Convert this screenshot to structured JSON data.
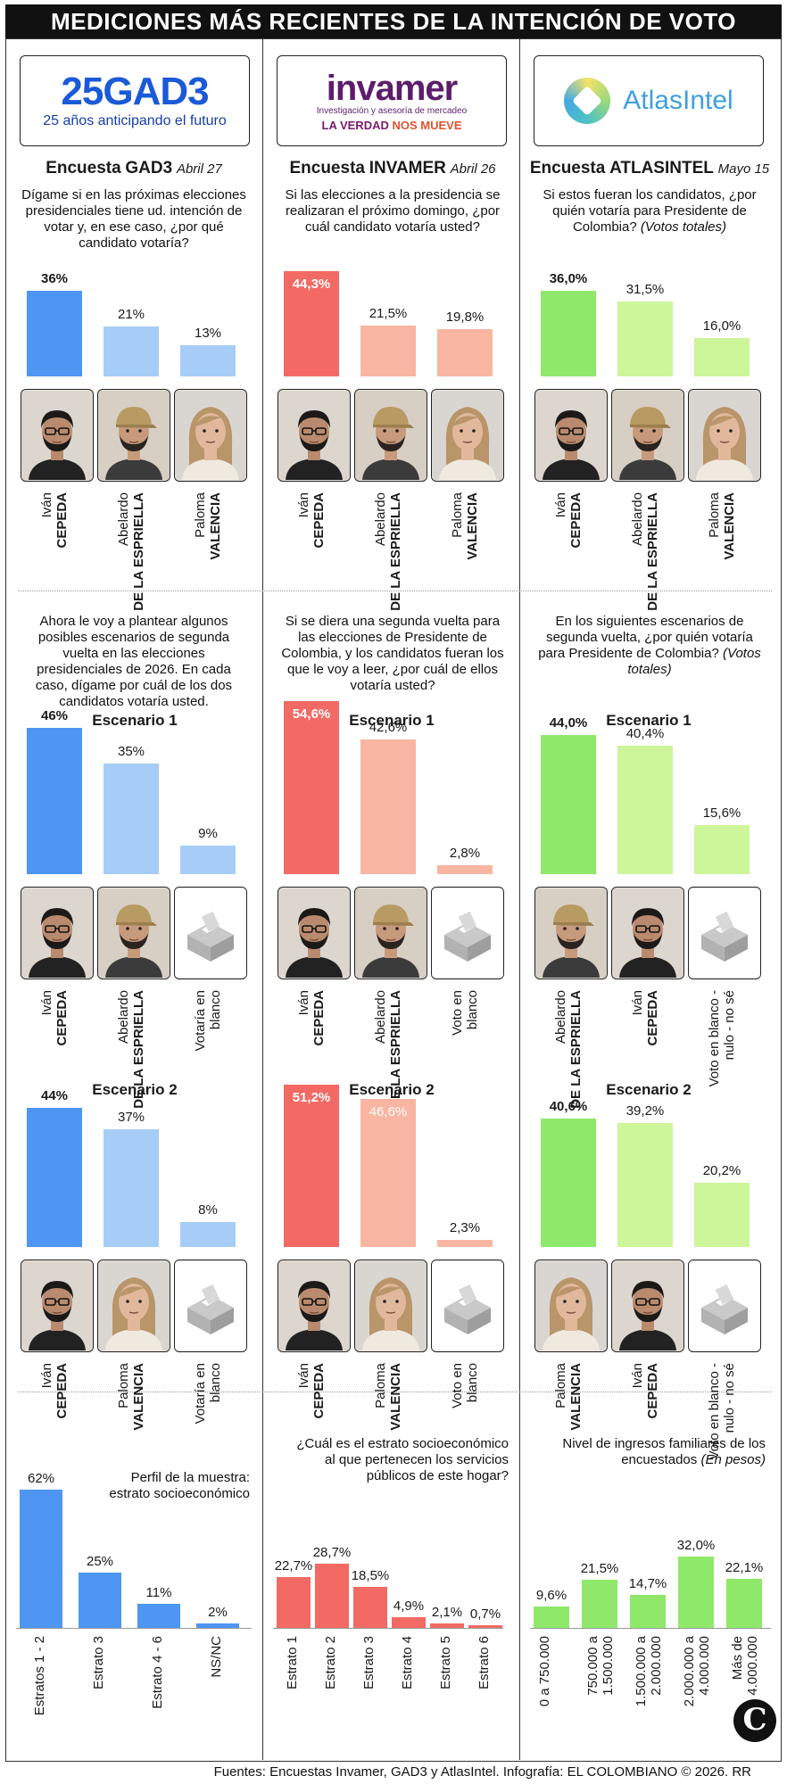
{
  "title": "MEDICIONES MÁS RECIENTES DE LA INTENCIÓN DE VOTO",
  "footer": "Fuentes: Encuestas Invamer, GAD3 y AtlasIntel. Infografía: EL COLOMBIANO © 2026. RR",
  "credit_logo": "C",
  "colors": {
    "gad3": "#4d96f2",
    "gad3_light": "#a6cdf7",
    "invamer": "#f26a63",
    "invamer_light": "#f8b6a2",
    "atlas": "#8fe86a",
    "atlas_light": "#cdf59a"
  },
  "pollsters": {
    "gad3": {
      "logo_mark": "25GAD3",
      "logo_tagline": "25 años anticipando el futuro",
      "survey_prefix": "Encuesta",
      "survey_name": "GAD3",
      "date": "Abril 27"
    },
    "invamer": {
      "logo_mark": "invamer",
      "logo_sub": "Investigación y asesoría de mercadeo",
      "logo_tagline_a": "LA VERDAD",
      "logo_tagline_b": "NOS MUEVE",
      "survey_prefix": "Encuesta",
      "survey_name": "INVAMER",
      "date": "Abril 26"
    },
    "atlas": {
      "logo_mark_a": "Atlas",
      "logo_mark_b": "Intel",
      "survey_prefix": "Encuesta",
      "survey_name": "ATLASINTEL",
      "date": "Mayo 15"
    }
  },
  "first_round": {
    "gad3_question": "Dígame si en las próximas elecciones presidenciales tiene ud. intención de votar y, en ese caso, ¿por qué candidato votaría?",
    "invamer_question": "Si las elecciones a la presidencia se realizaran el próximo domingo, ¿por cuál candidato votaría usted?",
    "atlas_question": "Si estos fueran los candidatos, ¿por quién votaría para Presidente de Colombia?",
    "atlas_question_note": "(Votos totales)"
  },
  "second_round": {
    "gad3_question": "Ahora le voy a plantear algunos posibles escenarios de segunda vuelta en las elecciones presidenciales de 2026. En cada caso, dígame por cuál de los dos candidatos votaría usted.",
    "invamer_question": "Si se diera una segunda vuelta para las elecciones de Presidente de Colombia, y los candidatos fueran los que le voy a leer, ¿por cuál de ellos votaría usted?",
    "atlas_question": "En los siguientes escenarios de segunda vuelta, ¿por quién votaría para Presidente de Colombia?",
    "atlas_question_note": "(Votos totales)",
    "scenario1": "Escenario 1",
    "scenario2": "Escenario 2"
  },
  "profiles": {
    "gad3_title": "Perfil de la muestra: estrato socioeconómico",
    "invamer_title": "¿Cuál es el estrato socioeconómico al que pertenecen los servicios públicos de este hogar?",
    "atlas_title": "Nivel de ingresos familiares de los encuestados",
    "atlas_title_note": "(En pesos)"
  },
  "chart_data": [
    {
      "type": "bar",
      "id": "gad3-r1",
      "categories": [
        [
          "Iván",
          "CEPEDA"
        ],
        [
          "Abelardo",
          "DE LA ESPRIELLA"
        ],
        [
          "Paloma",
          "VALENCIA"
        ]
      ],
      "values": [
        36,
        21,
        13
      ],
      "labels": [
        "36%",
        "21%",
        "13%"
      ],
      "ylim": [
        0,
        48
      ]
    },
    {
      "type": "bar",
      "id": "invamer-r1",
      "categories": [
        [
          "Iván",
          "CEPEDA"
        ],
        [
          "Abelardo",
          "DE LA ESPRIELLA"
        ],
        [
          "Paloma",
          "VALENCIA"
        ]
      ],
      "values": [
        44.3,
        21.5,
        19.8
      ],
      "labels": [
        "44,3%",
        "21,5%",
        "19,8%"
      ],
      "ylim": [
        0,
        48
      ]
    },
    {
      "type": "bar",
      "id": "atlas-r1",
      "categories": [
        [
          "Iván",
          "CEPEDA"
        ],
        [
          "Abelardo",
          "DE LA ESPRIELLA"
        ],
        [
          "Paloma",
          "VALENCIA"
        ]
      ],
      "values": [
        36.0,
        31.5,
        16.0
      ],
      "labels": [
        "36,0%",
        "31,5%",
        "16,0%"
      ],
      "ylim": [
        0,
        48
      ]
    },
    {
      "type": "bar",
      "id": "gad3-s1",
      "categories": [
        [
          "Iván",
          "CEPEDA"
        ],
        [
          "Abelardo",
          "DE LA ESPRIELLA"
        ],
        [
          "Votaría en",
          "blanco"
        ]
      ],
      "values": [
        46,
        35,
        9
      ],
      "labels": [
        "46%",
        "35%",
        "9%"
      ],
      "ylim": [
        0,
        60
      ]
    },
    {
      "type": "bar",
      "id": "invamer-s1",
      "categories": [
        [
          "Iván",
          "CEPEDA"
        ],
        [
          "Abelardo",
          "DE LA ESPRIELLA"
        ],
        [
          "Voto en",
          "blanco"
        ]
      ],
      "values": [
        54.6,
        42.6,
        2.8
      ],
      "labels": [
        "54,6%",
        "42,6%",
        "2,8%"
      ],
      "ylim": [
        0,
        60
      ]
    },
    {
      "type": "bar",
      "id": "atlas-s1",
      "categories": [
        [
          "Abelardo",
          "DE LA ESPRIELLA"
        ],
        [
          "Iván",
          "CEPEDA"
        ],
        [
          "Voto en blanco -",
          "nulo - no sé"
        ]
      ],
      "values": [
        44.0,
        40.4,
        15.6
      ],
      "labels": [
        "44,0%",
        "40,4%",
        "15,6%"
      ],
      "ylim": [
        0,
        60
      ]
    },
    {
      "type": "bar",
      "id": "gad3-s2",
      "categories": [
        [
          "Iván",
          "CEPEDA"
        ],
        [
          "Paloma",
          "VALENCIA"
        ],
        [
          "Votaría en",
          "blanco"
        ]
      ],
      "values": [
        44,
        37,
        8
      ],
      "labels": [
        "44%",
        "37%",
        "8%"
      ],
      "ylim": [
        0,
        60
      ]
    },
    {
      "type": "bar",
      "id": "invamer-s2",
      "categories": [
        [
          "Iván",
          "CEPEDA"
        ],
        [
          "Paloma",
          "VALENCIA"
        ],
        [
          "Voto en",
          "blanco"
        ]
      ],
      "values": [
        51.2,
        46.6,
        2.3
      ],
      "labels": [
        "51,2%",
        "46,6%",
        "2,3%"
      ],
      "ylim": [
        0,
        60
      ]
    },
    {
      "type": "bar",
      "id": "atlas-s2",
      "categories": [
        [
          "Paloma",
          "VALENCIA"
        ],
        [
          "Iván",
          "CEPEDA"
        ],
        [
          "Voto en blanco -",
          "nulo - no sé"
        ]
      ],
      "values": [
        40.6,
        39.2,
        20.2
      ],
      "labels": [
        "40,6%",
        "39,2%",
        "20,2%"
      ],
      "ylim": [
        0,
        60
      ]
    },
    {
      "type": "bar",
      "id": "gad3-profile",
      "categories": [
        "Estratos 1 - 2",
        "Estrato 3",
        "Estrato 4 - 6",
        "NS/NC"
      ],
      "values": [
        62,
        25,
        11,
        2
      ],
      "labels": [
        "62%",
        "25%",
        "11%",
        "2%"
      ],
      "ylim": [
        0,
        62
      ]
    },
    {
      "type": "bar",
      "id": "invamer-profile",
      "categories": [
        "Estrato 1",
        "Estrato 2",
        "Estrato 3",
        "Estrato 4",
        "Estrato 5",
        "Estrato 6"
      ],
      "values": [
        22.7,
        28.7,
        18.5,
        4.9,
        2.1,
        0.7
      ],
      "labels": [
        "22,7%",
        "28,7%",
        "18,5%",
        "4,9%",
        "2,1%",
        "0,7%"
      ],
      "ylim": [
        0,
        62
      ]
    },
    {
      "type": "bar",
      "id": "atlas-profile",
      "categories": [
        "0 a 750.000",
        "750.000 a 1.500.000",
        "1.500.000 a 2.000.000",
        "2.000.000 a 4.000.000",
        "Más de 4.000.000"
      ],
      "values": [
        9.6,
        21.5,
        14.7,
        32.0,
        22.1
      ],
      "labels": [
        "9,6%",
        "21,5%",
        "14,7%",
        "32,0%",
        "22,1%"
      ],
      "ylim": [
        0,
        62
      ]
    }
  ]
}
